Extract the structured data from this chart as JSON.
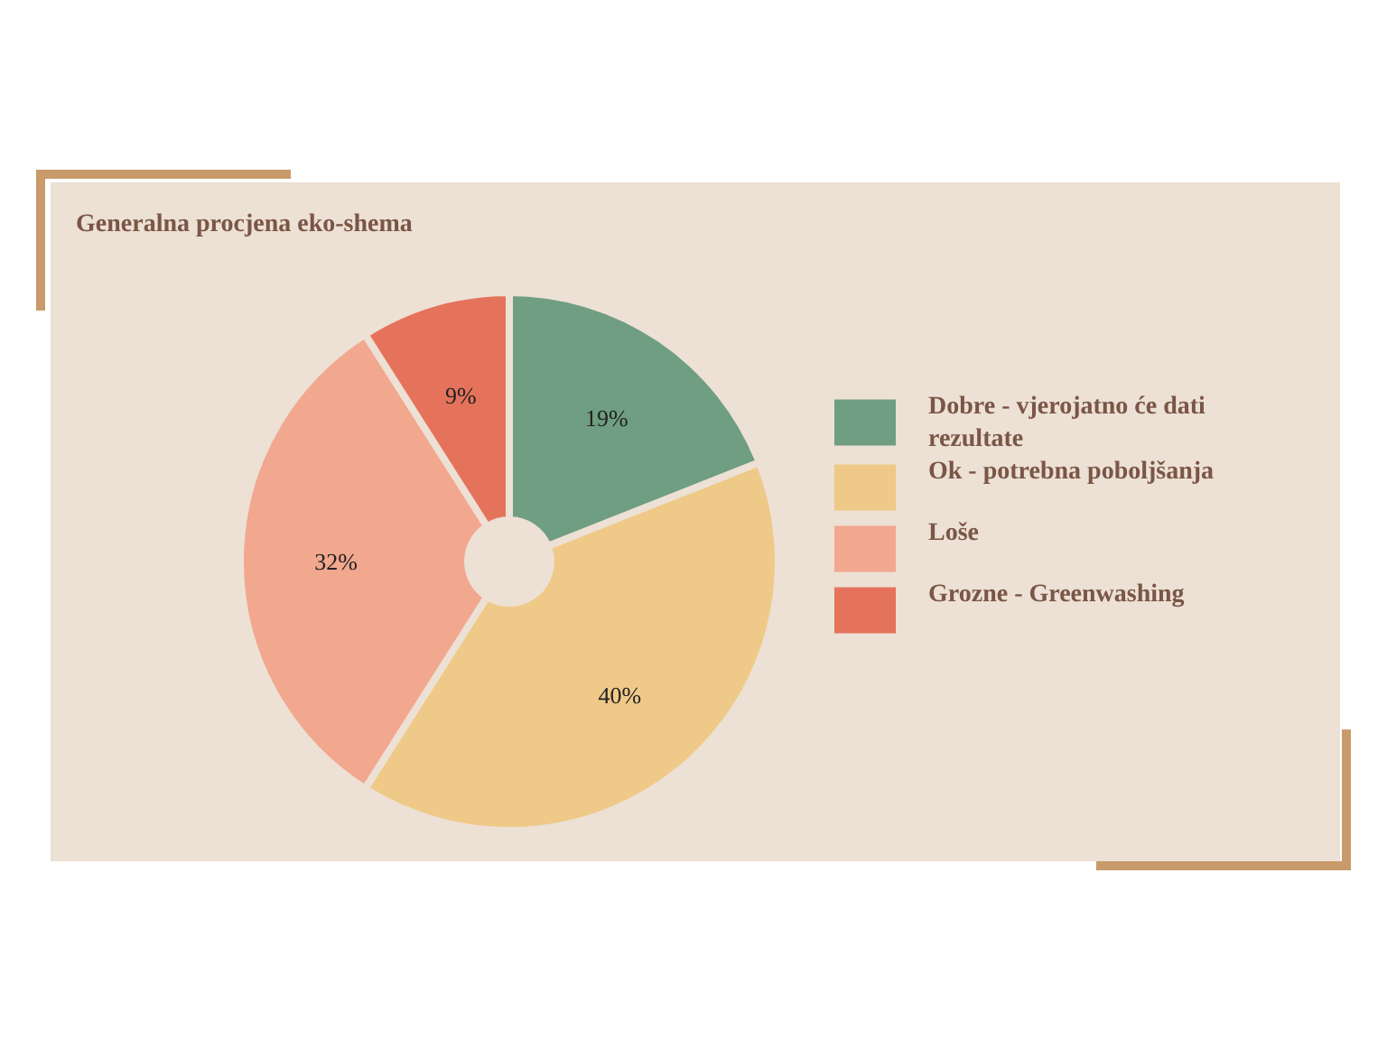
{
  "chart_data": {
    "type": "donut",
    "title": "Generalna procjena eko-shema",
    "categories": [
      "Dobre - vjerojatno će dati rezultate",
      "Ok - potrebna poboljšanja",
      "Loše",
      "Grozne - Greenwashing"
    ],
    "values": [
      19,
      40,
      32,
      9
    ],
    "colors": [
      "#6f9e82",
      "#efc987",
      "#f2a78f",
      "#e5735c"
    ],
    "value_labels": [
      "19%",
      "40%",
      "32%",
      "9%"
    ],
    "legend": "right"
  }
}
